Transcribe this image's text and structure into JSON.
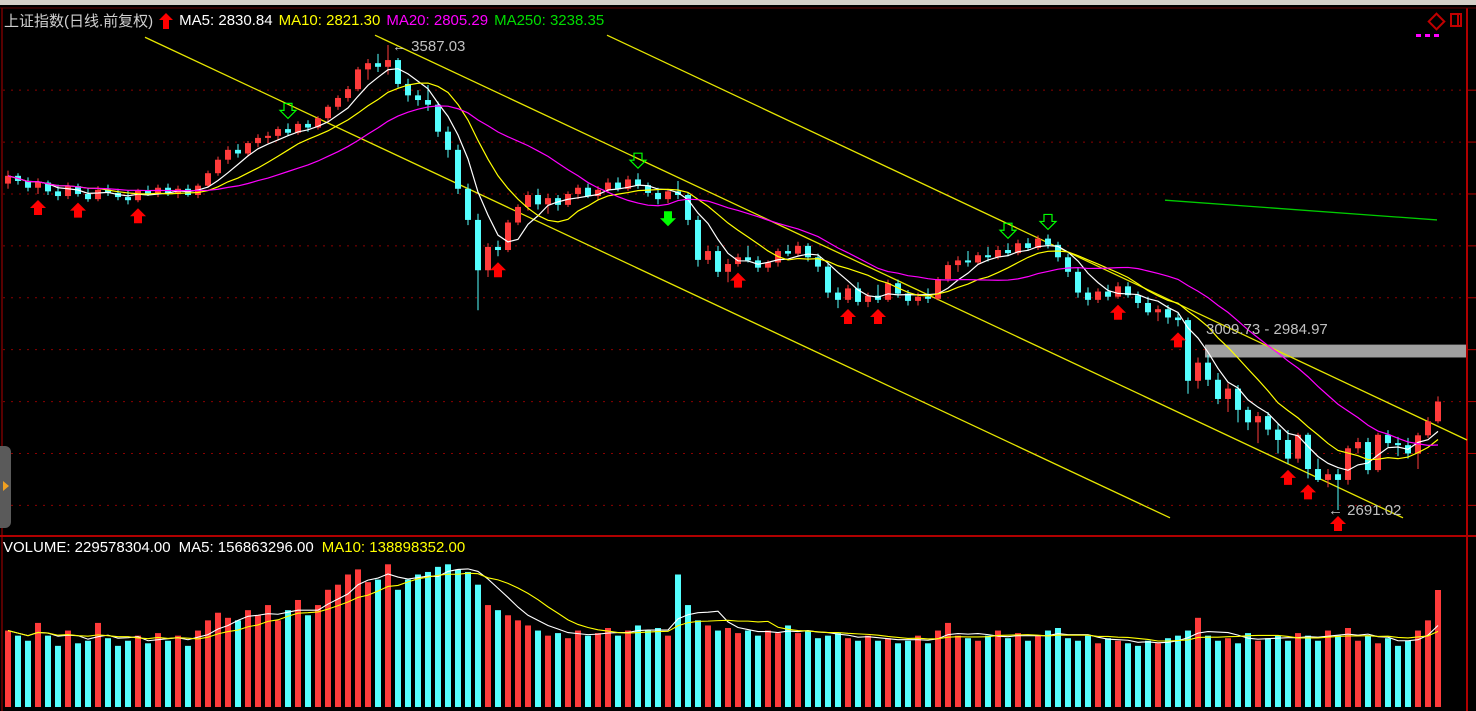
{
  "header": {
    "title": "上证指数(日线.前复权)",
    "ma5": "MA5: 2830.84",
    "ma10": "MA10: 2821.30",
    "ma20": "MA20: 2805.29",
    "ma250": "MA250: 3238.35"
  },
  "volume_header": {
    "volume": "VOLUME: 229578304.00",
    "ma5": "MA5: 156863296.00",
    "ma10": "MA10: 138898352.00"
  },
  "annotations": {
    "high_label": "3587.03",
    "low_label": "2691.02",
    "gap_label": "3009.73 - 2984.97"
  },
  "colors": {
    "up": "#ff3b3b",
    "down": "#54ffff",
    "ma5": "#ffffff",
    "ma10": "#ffff00",
    "ma20": "#ff00ff",
    "ma250": "#00cc00",
    "trendline": "#e6e600",
    "grid": "#8b0000",
    "gap_band": "#a0a0a0",
    "signal_buy": "#ff0000",
    "signal_sell": "#00ff00"
  },
  "chart_data": {
    "type": "candlestick",
    "title": "上证指数(日线.前复权)",
    "grid": true,
    "ohlc": [
      [
        3320,
        3345,
        3310,
        3335
      ],
      [
        3335,
        3340,
        3318,
        3325
      ],
      [
        3325,
        3332,
        3305,
        3312
      ],
      [
        3312,
        3330,
        3300,
        3322
      ],
      [
        3322,
        3326,
        3298,
        3305
      ],
      [
        3305,
        3318,
        3288,
        3296
      ],
      [
        3296,
        3322,
        3290,
        3315
      ],
      [
        3315,
        3320,
        3295,
        3300
      ],
      [
        3300,
        3312,
        3285,
        3290
      ],
      [
        3290,
        3315,
        3286,
        3308
      ],
      [
        3308,
        3318,
        3296,
        3302
      ],
      [
        3302,
        3310,
        3288,
        3294
      ],
      [
        3294,
        3306,
        3280,
        3288
      ],
      [
        3288,
        3310,
        3284,
        3306
      ],
      [
        3306,
        3316,
        3296,
        3300
      ],
      [
        3300,
        3318,
        3294,
        3312
      ],
      [
        3312,
        3320,
        3296,
        3302
      ],
      [
        3302,
        3316,
        3292,
        3310
      ],
      [
        3310,
        3318,
        3295,
        3298
      ],
      [
        3298,
        3320,
        3292,
        3316
      ],
      [
        3316,
        3345,
        3312,
        3340
      ],
      [
        3340,
        3372,
        3335,
        3366
      ],
      [
        3366,
        3392,
        3358,
        3385
      ],
      [
        3385,
        3396,
        3370,
        3378
      ],
      [
        3378,
        3402,
        3372,
        3398
      ],
      [
        3398,
        3415,
        3390,
        3408
      ],
      [
        3408,
        3420,
        3398,
        3412
      ],
      [
        3412,
        3430,
        3405,
        3425
      ],
      [
        3425,
        3436,
        3412,
        3418
      ],
      [
        3418,
        3440,
        3414,
        3435
      ],
      [
        3435,
        3442,
        3420,
        3428
      ],
      [
        3428,
        3450,
        3424,
        3446
      ],
      [
        3446,
        3472,
        3440,
        3468
      ],
      [
        3468,
        3490,
        3462,
        3485
      ],
      [
        3485,
        3508,
        3478,
        3502
      ],
      [
        3502,
        3545,
        3498,
        3540
      ],
      [
        3540,
        3560,
        3520,
        3552
      ],
      [
        3552,
        3570,
        3535,
        3545
      ],
      [
        3545,
        3587.03,
        3530,
        3558
      ],
      [
        3558,
        3562,
        3505,
        3512
      ],
      [
        3512,
        3522,
        3478,
        3490
      ],
      [
        3490,
        3500,
        3470,
        3481
      ],
      [
        3481,
        3510,
        3460,
        3472
      ],
      [
        3472,
        3478,
        3410,
        3420
      ],
      [
        3420,
        3430,
        3370,
        3385
      ],
      [
        3385,
        3395,
        3300,
        3310
      ],
      [
        3310,
        3320,
        3240,
        3250
      ],
      [
        3250,
        3262,
        3076,
        3153
      ],
      [
        3153,
        3205,
        3140,
        3198
      ],
      [
        3198,
        3210,
        3180,
        3192
      ],
      [
        3192,
        3250,
        3188,
        3245
      ],
      [
        3245,
        3280,
        3240,
        3275
      ],
      [
        3275,
        3305,
        3268,
        3298
      ],
      [
        3298,
        3310,
        3270,
        3280
      ],
      [
        3280,
        3300,
        3262,
        3292
      ],
      [
        3292,
        3298,
        3268,
        3279
      ],
      [
        3279,
        3305,
        3275,
        3300
      ],
      [
        3300,
        3318,
        3290,
        3312
      ],
      [
        3312,
        3320,
        3292,
        3296
      ],
      [
        3296,
        3315,
        3288,
        3308
      ],
      [
        3308,
        3330,
        3302,
        3322
      ],
      [
        3322,
        3332,
        3305,
        3310
      ],
      [
        3310,
        3335,
        3306,
        3328
      ],
      [
        3328,
        3340,
        3310,
        3317
      ],
      [
        3317,
        3322,
        3295,
        3302
      ],
      [
        3302,
        3312,
        3280,
        3290
      ],
      [
        3290,
        3310,
        3282,
        3305
      ],
      [
        3305,
        3325,
        3290,
        3298
      ],
      [
        3298,
        3302,
        3240,
        3250
      ],
      [
        3250,
        3258,
        3160,
        3173
      ],
      [
        3173,
        3200,
        3165,
        3190
      ],
      [
        3190,
        3200,
        3140,
        3150
      ],
      [
        3150,
        3175,
        3130,
        3165
      ],
      [
        3165,
        3185,
        3160,
        3178
      ],
      [
        3178,
        3200,
        3168,
        3172
      ],
      [
        3172,
        3180,
        3150,
        3158
      ],
      [
        3158,
        3172,
        3150,
        3168
      ],
      [
        3168,
        3195,
        3160,
        3190
      ],
      [
        3190,
        3202,
        3180,
        3185
      ],
      [
        3185,
        3208,
        3180,
        3200
      ],
      [
        3200,
        3205,
        3170,
        3178
      ],
      [
        3178,
        3185,
        3150,
        3160
      ],
      [
        3160,
        3168,
        3100,
        3110
      ],
      [
        3110,
        3120,
        3080,
        3096
      ],
      [
        3096,
        3125,
        3090,
        3118
      ],
      [
        3118,
        3130,
        3085,
        3092
      ],
      [
        3092,
        3110,
        3082,
        3104
      ],
      [
        3104,
        3125,
        3090,
        3096
      ],
      [
        3096,
        3135,
        3092,
        3128
      ],
      [
        3128,
        3135,
        3100,
        3108
      ],
      [
        3108,
        3115,
        3085,
        3094
      ],
      [
        3094,
        3110,
        3085,
        3102
      ],
      [
        3102,
        3118,
        3090,
        3098
      ],
      [
        3098,
        3140,
        3095,
        3136
      ],
      [
        3136,
        3170,
        3130,
        3163
      ],
      [
        3163,
        3180,
        3150,
        3172
      ],
      [
        3172,
        3190,
        3160,
        3168
      ],
      [
        3168,
        3188,
        3165,
        3182
      ],
      [
        3182,
        3198,
        3170,
        3178
      ],
      [
        3178,
        3200,
        3174,
        3192
      ],
      [
        3192,
        3205,
        3180,
        3186
      ],
      [
        3186,
        3212,
        3182,
        3205
      ],
      [
        3205,
        3215,
        3190,
        3196
      ],
      [
        3196,
        3220,
        3192,
        3214
      ],
      [
        3214,
        3222,
        3195,
        3202
      ],
      [
        3202,
        3208,
        3170,
        3178
      ],
      [
        3178,
        3185,
        3140,
        3150
      ],
      [
        3150,
        3158,
        3100,
        3110
      ],
      [
        3110,
        3120,
        3085,
        3096
      ],
      [
        3096,
        3118,
        3090,
        3112
      ],
      [
        3112,
        3125,
        3095,
        3102
      ],
      [
        3102,
        3130,
        3098,
        3122
      ],
      [
        3122,
        3130,
        3100,
        3105
      ],
      [
        3105,
        3112,
        3080,
        3090
      ],
      [
        3090,
        3102,
        3066,
        3072
      ],
      [
        3072,
        3085,
        3055,
        3078
      ],
      [
        3078,
        3086,
        3050,
        3062
      ],
      [
        3062,
        3070,
        3045,
        3057
      ],
      [
        3057,
        3062,
        2915,
        2940
      ],
      [
        2940,
        2985,
        2925,
        2975
      ],
      [
        2975,
        2990,
        2930,
        2942
      ],
      [
        2942,
        2955,
        2895,
        2905
      ],
      [
        2905,
        2935,
        2880,
        2925
      ],
      [
        2925,
        2932,
        2860,
        2884
      ],
      [
        2884,
        2890,
        2845,
        2860
      ],
      [
        2860,
        2880,
        2820,
        2872
      ],
      [
        2872,
        2880,
        2835,
        2846
      ],
      [
        2846,
        2858,
        2800,
        2826
      ],
      [
        2826,
        2845,
        2780,
        2790
      ],
      [
        2790,
        2840,
        2782,
        2836
      ],
      [
        2836,
        2840,
        2752,
        2770
      ],
      [
        2770,
        2790,
        2745,
        2749
      ],
      [
        2749,
        2770,
        2735,
        2760
      ],
      [
        2760,
        2770,
        2691.02,
        2749
      ],
      [
        2749,
        2815,
        2740,
        2810
      ],
      [
        2810,
        2830,
        2800,
        2822
      ],
      [
        2822,
        2830,
        2760,
        2768
      ],
      [
        2768,
        2840,
        2764,
        2836
      ],
      [
        2836,
        2845,
        2812,
        2820
      ],
      [
        2820,
        2832,
        2795,
        2816
      ],
      [
        2816,
        2830,
        2790,
        2800
      ],
      [
        2800,
        2840,
        2770,
        2835
      ],
      [
        2835,
        2870,
        2830,
        2862
      ],
      [
        2862,
        2910,
        2858,
        2900
      ]
    ],
    "volume": [
      150000000,
      140000000,
      130000000,
      165000000,
      140000000,
      120000000,
      150000000,
      125000000,
      130000000,
      165000000,
      135000000,
      120000000,
      130000000,
      140000000,
      125000000,
      145000000,
      130000000,
      140000000,
      120000000,
      150000000,
      170000000,
      185000000,
      175000000,
      170000000,
      190000000,
      180000000,
      200000000,
      170000000,
      190000000,
      210000000,
      180000000,
      200000000,
      230000000,
      240000000,
      260000000,
      270000000,
      245000000,
      250000000,
      280000000,
      230000000,
      250000000,
      260000000,
      265000000,
      275000000,
      280000000,
      270000000,
      265000000,
      240000000,
      200000000,
      190000000,
      180000000,
      170000000,
      160000000,
      150000000,
      140000000,
      145000000,
      135000000,
      150000000,
      140000000,
      145000000,
      155000000,
      140000000,
      150000000,
      160000000,
      150000000,
      155000000,
      140000000,
      260000000,
      200000000,
      170000000,
      160000000,
      150000000,
      155000000,
      145000000,
      150000000,
      140000000,
      150000000,
      145000000,
      160000000,
      145000000,
      150000000,
      135000000,
      140000000,
      145000000,
      135000000,
      130000000,
      140000000,
      130000000,
      135000000,
      125000000,
      130000000,
      140000000,
      125000000,
      150000000,
      165000000,
      140000000,
      135000000,
      130000000,
      140000000,
      150000000,
      135000000,
      145000000,
      130000000,
      140000000,
      150000000,
      155000000,
      135000000,
      130000000,
      140000000,
      125000000,
      135000000,
      130000000,
      125000000,
      120000000,
      130000000,
      125000000,
      135000000,
      140000000,
      150000000,
      175000000,
      140000000,
      130000000,
      135000000,
      125000000,
      145000000,
      130000000,
      135000000,
      140000000,
      130000000,
      145000000,
      140000000,
      130000000,
      150000000,
      140000000,
      155000000,
      130000000,
      140000000,
      125000000,
      135000000,
      120000000,
      130000000,
      150000000,
      170000000,
      229578304
    ],
    "moving_averages": [
      5,
      10,
      20
    ],
    "volume_moving_averages": [
      5,
      10
    ],
    "price_gridlines": [
      2700,
      2800,
      2900,
      3000,
      3100,
      3200,
      3300,
      3400,
      3500
    ],
    "trendlines": [
      {
        "from": [
          13.7,
          3602
        ],
        "to": [
          116.2,
          2676
        ]
      },
      {
        "from": [
          36.7,
          3606
        ],
        "to": [
          139.5,
          2676
        ]
      },
      {
        "from": [
          59.9,
          3606
        ],
        "to": [
          145.9,
          2826
        ]
      }
    ],
    "ma250_segment": {
      "from": [
        115.7,
        3288
      ],
      "to": [
        142.9,
        3250
      ]
    },
    "gap_band": {
      "from_index": 120,
      "high": 3009.73,
      "low": 2984.97
    },
    "high_point": {
      "index": 38,
      "price": 3587.03
    },
    "low_point": {
      "index": 133,
      "price": 2691.02
    },
    "buy_signals": [
      3,
      7,
      13,
      49,
      73,
      84,
      87,
      111,
      117,
      128,
      130,
      133
    ],
    "sell_signals_hollow": [
      28,
      63,
      100,
      104
    ],
    "sell_signals_solid": [
      66
    ]
  }
}
